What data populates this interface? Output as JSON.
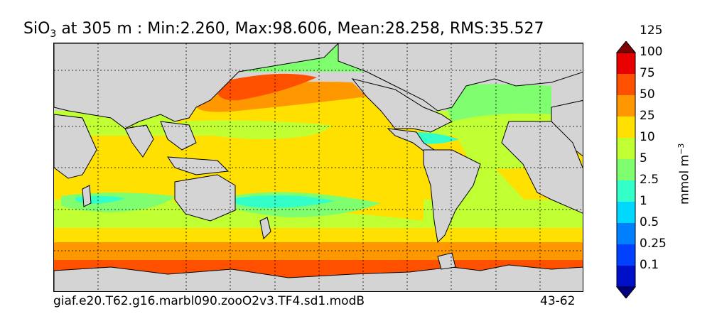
{
  "title": {
    "variable": "SiO",
    "subscript": "3",
    "rest": " at 305 m : Min:2.260, Max:98.606, Mean:28.258, RMS:35.527"
  },
  "footer": {
    "run_name": "giaf.e20.T62.g16.marbl090.zooO2v3.TF4.sd1.modB",
    "years": "43-62"
  },
  "colorbar": {
    "units": "mmol m",
    "units_exp": "−3",
    "bands": [
      {
        "color": "#00007f"
      },
      {
        "color": "#0010c8"
      },
      {
        "color": "#0040ff"
      },
      {
        "color": "#0080ff"
      },
      {
        "color": "#00d8ff"
      },
      {
        "color": "#33ffc8"
      },
      {
        "color": "#7fff6f"
      },
      {
        "color": "#c0ff32"
      },
      {
        "color": "#ffe000"
      },
      {
        "color": "#ff9800"
      },
      {
        "color": "#ff5000"
      },
      {
        "color": "#e80000"
      },
      {
        "color": "#7f0000"
      }
    ],
    "tick_labels": [
      "0.1",
      "0.25",
      "0.5",
      "1",
      "2.5",
      "5",
      "10",
      "25",
      "50",
      "75",
      "100",
      "125"
    ],
    "land_color": "#d4d4d4"
  }
}
